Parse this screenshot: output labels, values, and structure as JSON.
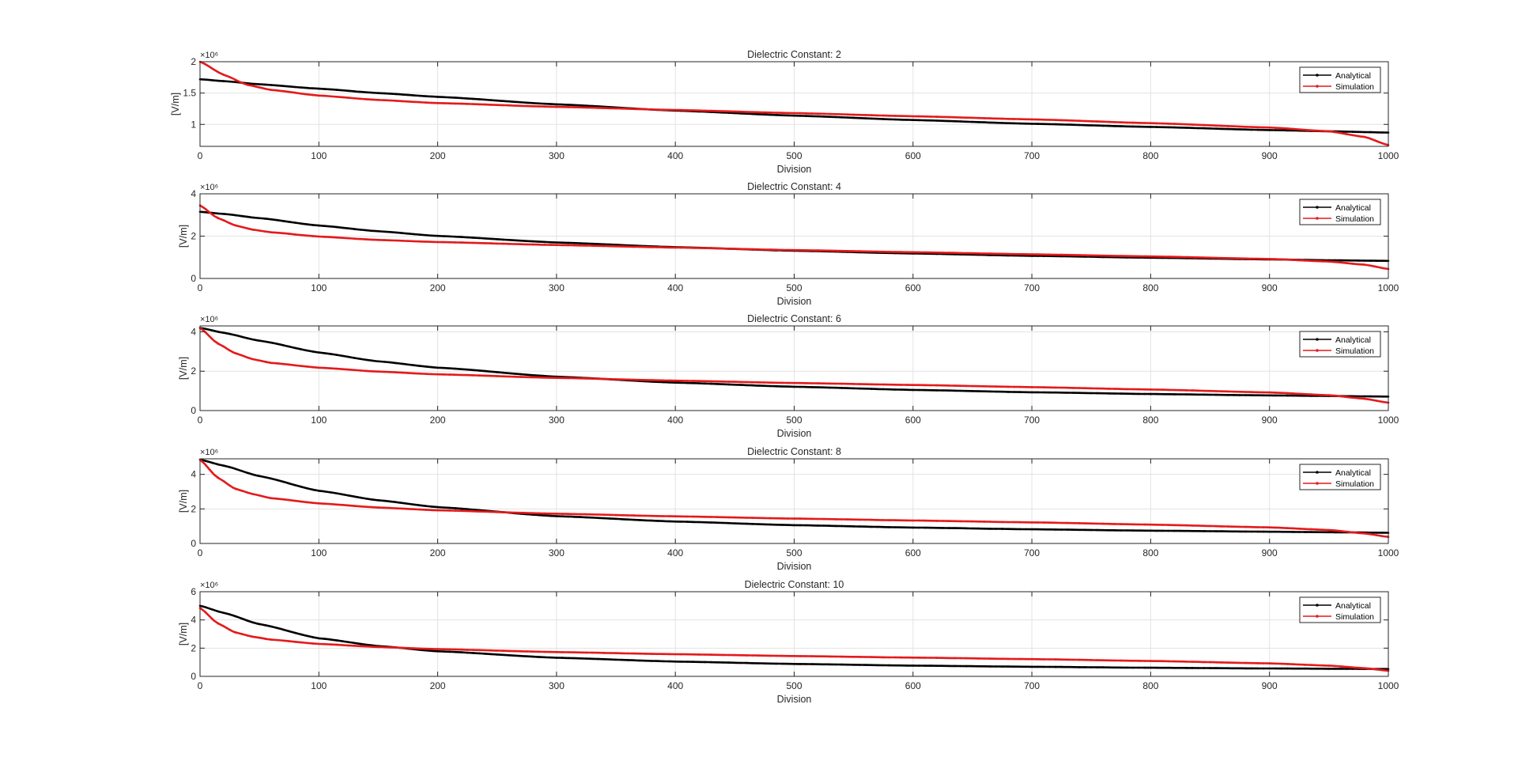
{
  "figure": {
    "background": "#ffffff",
    "grid_color": "#e3e3e3",
    "axis_color": "#262626"
  },
  "chart_data": [
    {
      "type": "line",
      "title": "Dielectric Constant: 2",
      "xlabel": "Division",
      "ylabel": "[V/m]",
      "y_exponent_label": "×10⁶",
      "xlim": [
        0,
        1000
      ],
      "ylim": [
        0.65,
        2.0
      ],
      "xticks": [
        0,
        100,
        200,
        300,
        400,
        500,
        600,
        700,
        800,
        900,
        1000
      ],
      "yticks": [
        1,
        1.5,
        2
      ],
      "ytick_labels": [
        "1",
        "1.5",
        "2"
      ],
      "grid": true,
      "legend_position": "top-right",
      "series": [
        {
          "name": "Analytical",
          "color": "#000000",
          "x": [
            0,
            20,
            50,
            100,
            150,
            200,
            300,
            400,
            500,
            600,
            700,
            800,
            900,
            950,
            1000
          ],
          "y": [
            1.72,
            1.69,
            1.64,
            1.57,
            1.5,
            1.44,
            1.32,
            1.22,
            1.14,
            1.07,
            1.01,
            0.96,
            0.91,
            0.89,
            0.87
          ]
        },
        {
          "name": "Simulation",
          "color": "#e41a1c",
          "x": [
            0,
            20,
            40,
            60,
            100,
            150,
            200,
            300,
            400,
            500,
            600,
            700,
            800,
            900,
            950,
            980,
            1000
          ],
          "y": [
            2.0,
            1.79,
            1.63,
            1.55,
            1.46,
            1.39,
            1.34,
            1.28,
            1.23,
            1.18,
            1.13,
            1.08,
            1.02,
            0.95,
            0.89,
            0.8,
            0.67
          ]
        }
      ]
    },
    {
      "type": "line",
      "title": "Dielectric Constant: 4",
      "xlabel": "Division",
      "ylabel": "[V/m]",
      "y_exponent_label": "×10⁶",
      "xlim": [
        0,
        1000
      ],
      "ylim": [
        0,
        4
      ],
      "xticks": [
        0,
        100,
        200,
        300,
        400,
        500,
        600,
        700,
        800,
        900,
        1000
      ],
      "yticks": [
        0,
        2,
        4
      ],
      "ytick_labels": [
        "0",
        "2",
        "4"
      ],
      "grid": true,
      "legend_position": "top-right",
      "series": [
        {
          "name": "Analytical",
          "color": "#000000",
          "x": [
            0,
            20,
            50,
            100,
            150,
            200,
            300,
            400,
            500,
            600,
            700,
            800,
            900,
            950,
            1000
          ],
          "y": [
            3.15,
            3.05,
            2.85,
            2.5,
            2.23,
            2.01,
            1.7,
            1.48,
            1.31,
            1.18,
            1.07,
            0.98,
            0.9,
            0.86,
            0.83
          ]
        },
        {
          "name": "Simulation",
          "color": "#e41a1c",
          "x": [
            0,
            15,
            30,
            45,
            60,
            100,
            150,
            200,
            300,
            400,
            500,
            600,
            700,
            800,
            900,
            950,
            980,
            1000
          ],
          "y": [
            3.45,
            2.85,
            2.5,
            2.3,
            2.18,
            1.98,
            1.82,
            1.72,
            1.58,
            1.46,
            1.34,
            1.24,
            1.14,
            1.04,
            0.92,
            0.8,
            0.65,
            0.45
          ]
        }
      ]
    },
    {
      "type": "line",
      "title": "Dielectric Constant: 6",
      "xlabel": "Division",
      "ylabel": "[V/m]",
      "y_exponent_label": "×10⁶",
      "xlim": [
        0,
        1000
      ],
      "ylim": [
        0,
        4.3
      ],
      "xticks": [
        0,
        100,
        200,
        300,
        400,
        500,
        600,
        700,
        800,
        900,
        1000
      ],
      "yticks": [
        0,
        2,
        4
      ],
      "ytick_labels": [
        "0",
        "2",
        "4"
      ],
      "grid": true,
      "legend_position": "top-right",
      "series": [
        {
          "name": "Analytical",
          "color": "#000000",
          "x": [
            0,
            20,
            50,
            100,
            150,
            200,
            300,
            400,
            500,
            600,
            700,
            800,
            900,
            950,
            1000
          ],
          "y": [
            4.2,
            3.95,
            3.55,
            2.95,
            2.5,
            2.18,
            1.72,
            1.42,
            1.21,
            1.05,
            0.93,
            0.84,
            0.77,
            0.74,
            0.71
          ]
        },
        {
          "name": "Simulation",
          "color": "#e41a1c",
          "x": [
            0,
            15,
            30,
            45,
            60,
            100,
            150,
            200,
            300,
            400,
            500,
            600,
            700,
            800,
            900,
            950,
            980,
            1000
          ],
          "y": [
            4.2,
            3.4,
            2.9,
            2.6,
            2.42,
            2.18,
            1.98,
            1.84,
            1.66,
            1.52,
            1.4,
            1.3,
            1.19,
            1.07,
            0.92,
            0.78,
            0.6,
            0.4
          ]
        }
      ]
    },
    {
      "type": "line",
      "title": "Dielectric Constant: 8",
      "xlabel": "Division",
      "ylabel": "[V/m]",
      "y_exponent_label": "×10⁶",
      "xlim": [
        0,
        1000
      ],
      "ylim": [
        0,
        4.9
      ],
      "xticks": [
        0,
        100,
        200,
        300,
        400,
        500,
        600,
        700,
        800,
        900,
        1000
      ],
      "yticks": [
        0,
        2,
        4
      ],
      "ytick_labels": [
        "0",
        "2",
        "4"
      ],
      "grid": true,
      "legend_position": "top-right",
      "series": [
        {
          "name": "Analytical",
          "color": "#000000",
          "x": [
            0,
            20,
            50,
            100,
            150,
            200,
            300,
            400,
            500,
            600,
            700,
            800,
            900,
            950,
            1000
          ],
          "y": [
            4.85,
            4.5,
            3.9,
            3.05,
            2.5,
            2.1,
            1.58,
            1.27,
            1.06,
            0.92,
            0.82,
            0.74,
            0.68,
            0.65,
            0.62
          ]
        },
        {
          "name": "Simulation",
          "color": "#e41a1c",
          "x": [
            0,
            15,
            30,
            45,
            60,
            100,
            150,
            200,
            300,
            400,
            500,
            600,
            700,
            800,
            900,
            950,
            980,
            1000
          ],
          "y": [
            4.85,
            3.8,
            3.15,
            2.85,
            2.62,
            2.32,
            2.08,
            1.92,
            1.72,
            1.57,
            1.44,
            1.33,
            1.22,
            1.09,
            0.93,
            0.78,
            0.58,
            0.38
          ]
        }
      ]
    },
    {
      "type": "line",
      "title": "Dielectric Constant: 10",
      "xlabel": "Division",
      "ylabel": "[V/m]",
      "y_exponent_label": "×10⁶",
      "xlim": [
        0,
        1000
      ],
      "ylim": [
        0,
        6
      ],
      "xticks": [
        0,
        100,
        200,
        300,
        400,
        500,
        600,
        700,
        800,
        900,
        1000
      ],
      "yticks": [
        0,
        2,
        4,
        6
      ],
      "ytick_labels": [
        "0",
        "2",
        "4",
        "6"
      ],
      "grid": true,
      "legend_position": "top-right",
      "series": [
        {
          "name": "Analytical",
          "color": "#000000",
          "x": [
            0,
            20,
            50,
            100,
            150,
            200,
            300,
            400,
            500,
            600,
            700,
            800,
            900,
            950,
            1000
          ],
          "y": [
            5.0,
            4.5,
            3.7,
            2.7,
            2.15,
            1.78,
            1.32,
            1.05,
            0.88,
            0.76,
            0.68,
            0.61,
            0.56,
            0.54,
            0.52
          ]
        },
        {
          "name": "Simulation",
          "color": "#e41a1c",
          "x": [
            0,
            15,
            30,
            45,
            60,
            100,
            150,
            200,
            300,
            400,
            500,
            600,
            700,
            800,
            900,
            950,
            980,
            1000
          ],
          "y": [
            4.85,
            3.75,
            3.1,
            2.8,
            2.6,
            2.3,
            2.08,
            1.93,
            1.72,
            1.57,
            1.44,
            1.33,
            1.22,
            1.09,
            0.92,
            0.76,
            0.58,
            0.4
          ]
        }
      ]
    }
  ]
}
